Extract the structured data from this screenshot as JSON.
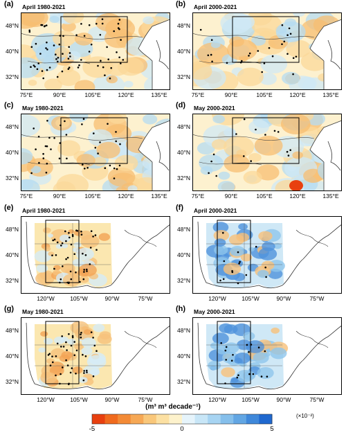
{
  "panels": [
    {
      "letter": "(a)",
      "title": "April 1980-2021",
      "region": "asia",
      "lat_ticks": [
        "48°N",
        "40°N",
        "32°N"
      ],
      "lon_ticks": [
        "75°E",
        "90°E",
        "105°E",
        "120°E",
        "135°E"
      ]
    },
    {
      "letter": "(b)",
      "title": "April 2000-2021",
      "region": "asia",
      "lat_ticks": [
        "48°N",
        "40°N",
        "32°N"
      ],
      "lon_ticks": [
        "75°E",
        "90°E",
        "105°E",
        "120°E",
        "135°E"
      ]
    },
    {
      "letter": "(c)",
      "title": "May 1980-2021",
      "region": "asia",
      "lat_ticks": [
        "48°N",
        "40°N",
        "32°N"
      ],
      "lon_ticks": [
        "75°E",
        "90°E",
        "105°E",
        "120°E",
        "135°E"
      ]
    },
    {
      "letter": "(d)",
      "title": "May 2000-2021",
      "region": "asia",
      "lat_ticks": [
        "48°N",
        "40°N",
        "32°N"
      ],
      "lon_ticks": [
        "75°E",
        "90°E",
        "105°E",
        "120°E",
        "135°E"
      ]
    },
    {
      "letter": "(e)",
      "title": "April 1980-2021",
      "region": "us",
      "lat_ticks": [
        "48°N",
        "40°N",
        "32°N"
      ],
      "lon_ticks": [
        "120°W",
        "105°W",
        "90°W",
        "75°W"
      ]
    },
    {
      "letter": "(f)",
      "title": "April 2000-2021",
      "region": "us",
      "lat_ticks": [
        "48°N",
        "40°N",
        "32°N"
      ],
      "lon_ticks": [
        "120°W",
        "105°W",
        "90°W",
        "75°W"
      ]
    },
    {
      "letter": "(g)",
      "title": "May 1980-2021",
      "region": "us",
      "lat_ticks": [
        "48°N",
        "40°N",
        "32°N"
      ],
      "lon_ticks": [
        "120°W",
        "105°W",
        "90°W",
        "75°W"
      ]
    },
    {
      "letter": "(h)",
      "title": "May 2000-2021",
      "region": "us",
      "lat_ticks": [
        "48°N",
        "40°N",
        "32°N"
      ],
      "lon_ticks": [
        "120°W",
        "105°W",
        "90°W",
        "75°W"
      ]
    }
  ],
  "colorbar": {
    "units_label": "(m³ m³ decade⁻¹)",
    "scale_label": "(×10⁻²)",
    "tick_labels": [
      "-5",
      "0",
      "5"
    ],
    "colors": [
      "#e8400f",
      "#f06a1e",
      "#f38a36",
      "#f6a855",
      "#f9c77a",
      "#fce0a2",
      "#fdf2cc",
      "#e6f4fb",
      "#c8e6f7",
      "#a7d4f2",
      "#85bfeb",
      "#62a6e3",
      "#3f88da",
      "#1f68cf"
    ]
  },
  "colors": {
    "asia_base": "#fbe7b0",
    "us_base": "#fbe7b0",
    "blue": "#bfe1f4",
    "dot": "#000000",
    "box": "#000000",
    "coast": "#555555"
  }
}
